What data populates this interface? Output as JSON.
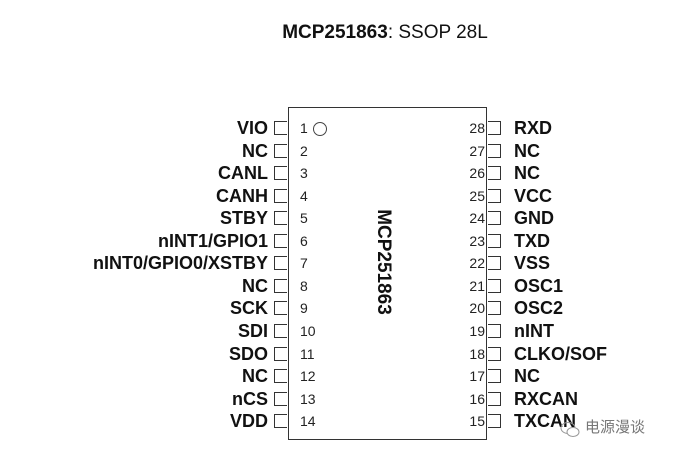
{
  "title": {
    "part": "MCP251863",
    "suffix": ": SSOP 28L"
  },
  "chip_label": "MCP251863",
  "left_pins": [
    {
      "num": "1",
      "name": "VIO"
    },
    {
      "num": "2",
      "name": "NC"
    },
    {
      "num": "3",
      "name": "CANL"
    },
    {
      "num": "4",
      "name": "CANH"
    },
    {
      "num": "5",
      "name": "STBY"
    },
    {
      "num": "6",
      "name": "nINT1/GPIO1"
    },
    {
      "num": "7",
      "name": "nINT0/GPIO0/XSTBY"
    },
    {
      "num": "8",
      "name": "NC"
    },
    {
      "num": "9",
      "name": "SCK"
    },
    {
      "num": "10",
      "name": "SDI"
    },
    {
      "num": "11",
      "name": "SDO"
    },
    {
      "num": "12",
      "name": "NC"
    },
    {
      "num": "13",
      "name": "nCS"
    },
    {
      "num": "14",
      "name": "VDD"
    }
  ],
  "right_pins": [
    {
      "num": "28",
      "name": "RXD"
    },
    {
      "num": "27",
      "name": "NC"
    },
    {
      "num": "26",
      "name": "NC"
    },
    {
      "num": "25",
      "name": "VCC"
    },
    {
      "num": "24",
      "name": "GND"
    },
    {
      "num": "23",
      "name": "TXD"
    },
    {
      "num": "22",
      "name": "VSS"
    },
    {
      "num": "21",
      "name": "OSC1"
    },
    {
      "num": "20",
      "name": "OSC2"
    },
    {
      "num": "19",
      "name": "nINT"
    },
    {
      "num": "18",
      "name": "CLKO/SOF"
    },
    {
      "num": "17",
      "name": "NC"
    },
    {
      "num": "16",
      "name": "RXCAN"
    },
    {
      "num": "15",
      "name": "TXCAN"
    }
  ],
  "watermark": "电源漫谈"
}
